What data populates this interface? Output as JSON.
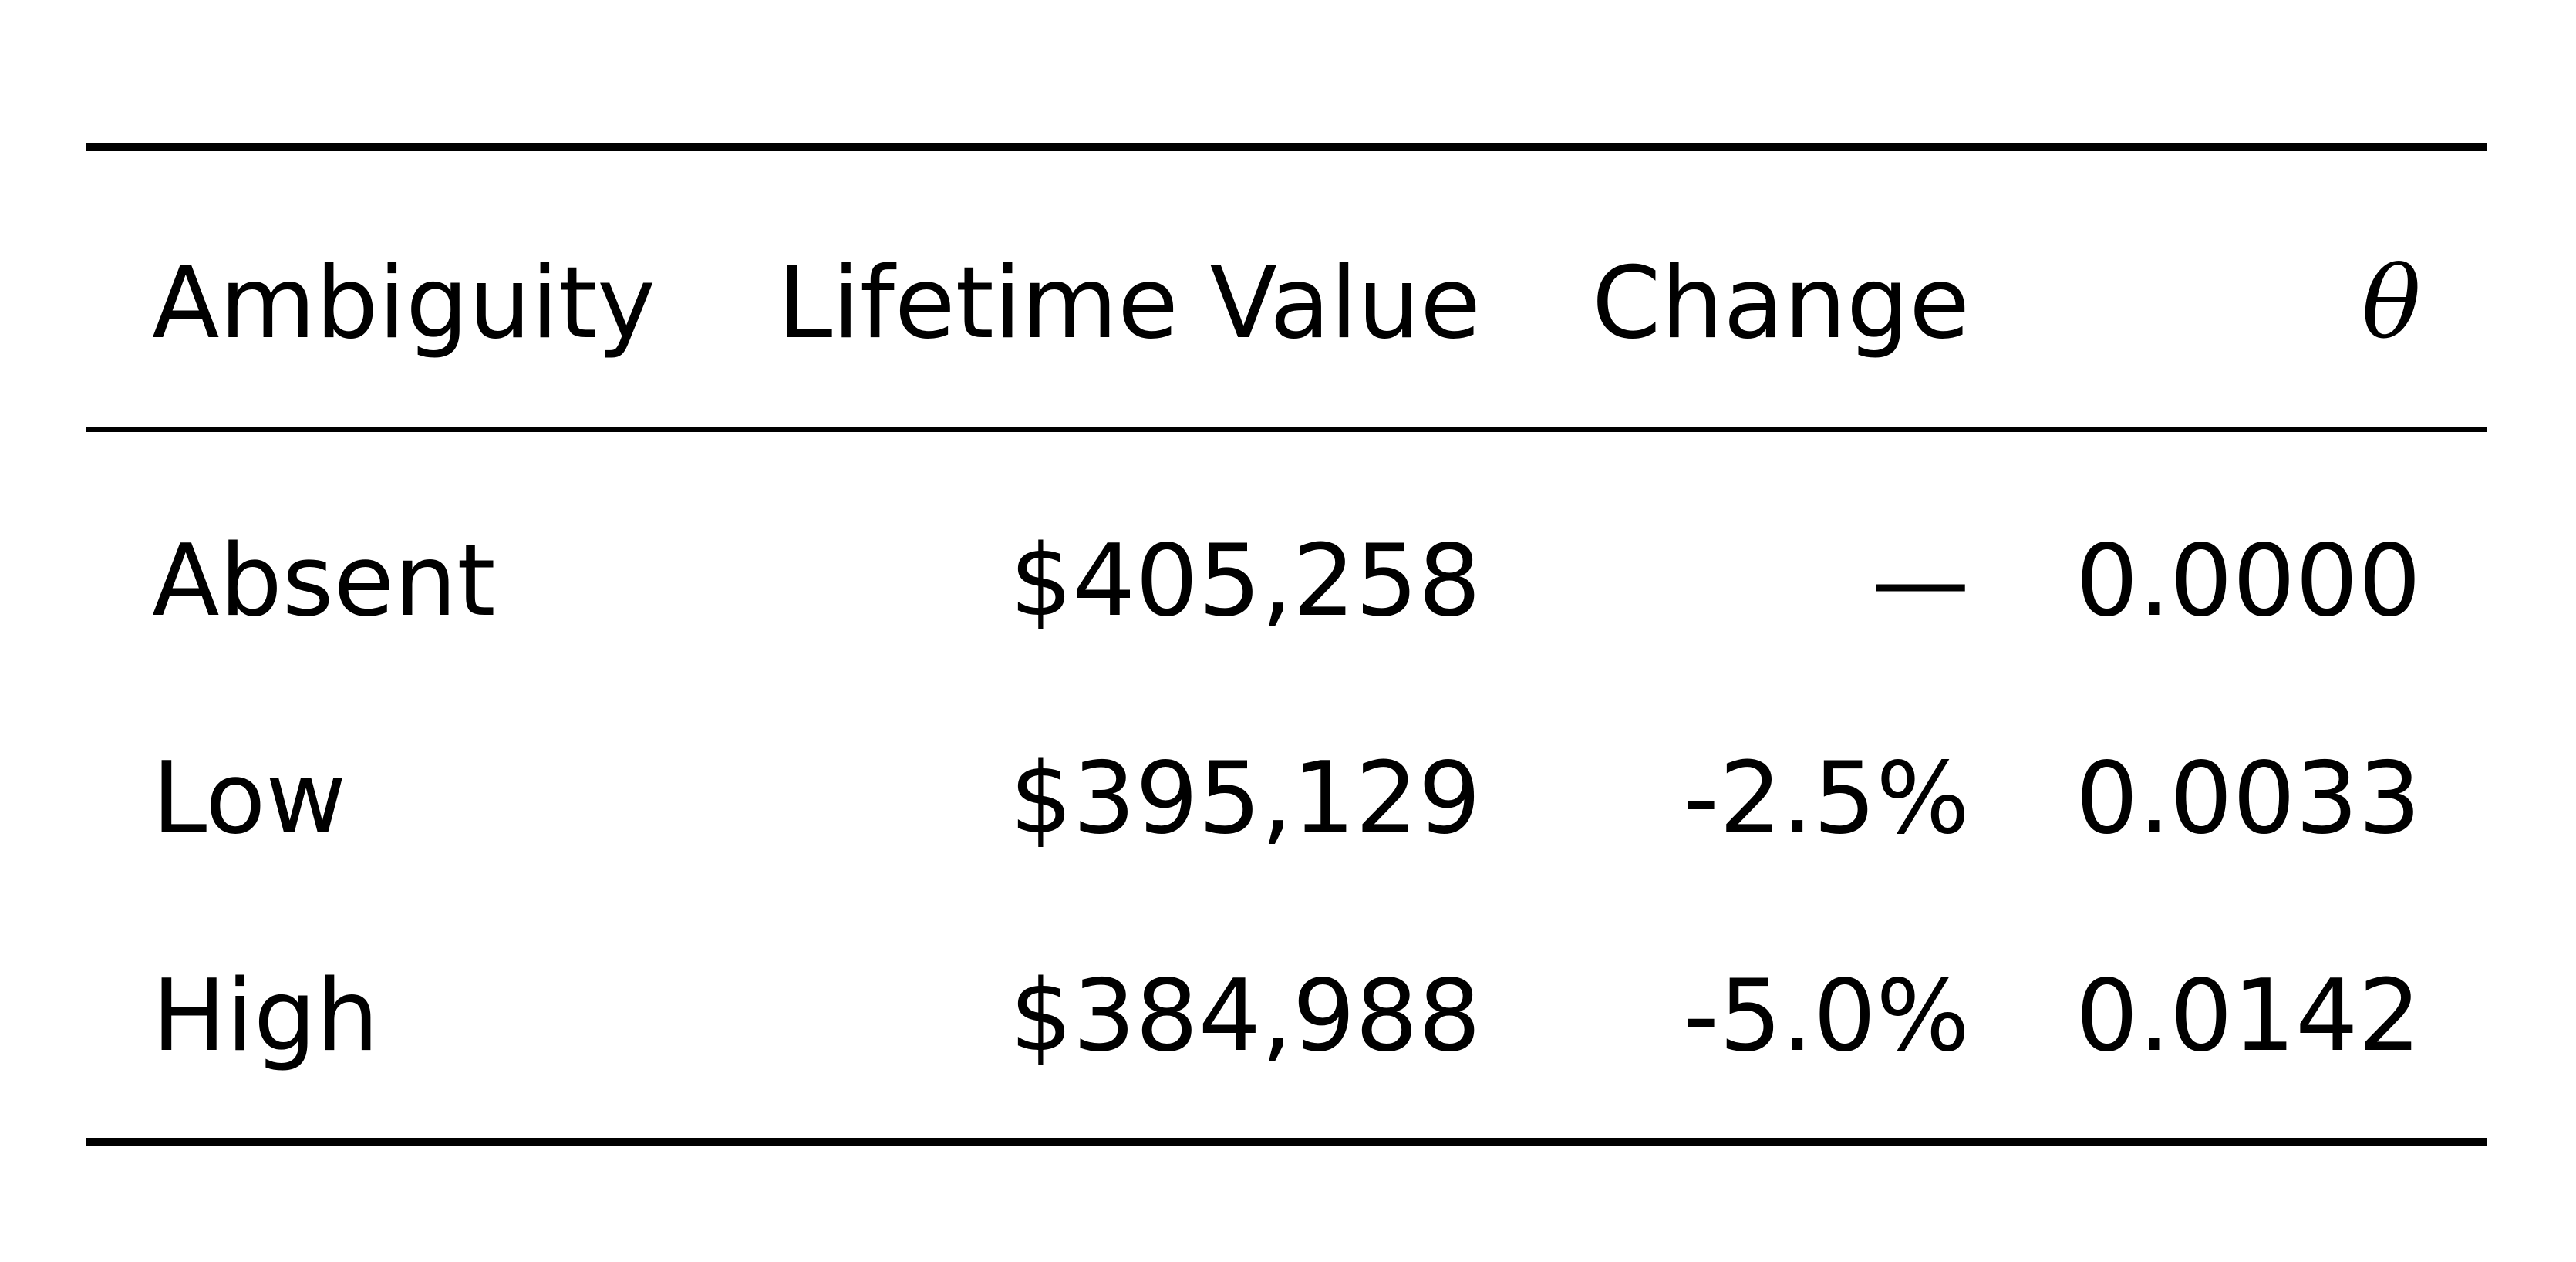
{
  "table": {
    "headers": {
      "ambiguity": "Ambiguity",
      "lifetime_value": "Lifetime Value",
      "change": "Change",
      "theta": "θ"
    },
    "rows": [
      {
        "ambiguity": "Absent",
        "lifetime_value": "$405,258",
        "change": "—",
        "theta": "0.0000"
      },
      {
        "ambiguity": "Low",
        "lifetime_value": "$395,129",
        "change": "-2.5%",
        "theta": "0.0033"
      },
      {
        "ambiguity": "High",
        "lifetime_value": "$384,988",
        "change": "-5.0%",
        "theta": "0.0142"
      }
    ]
  }
}
